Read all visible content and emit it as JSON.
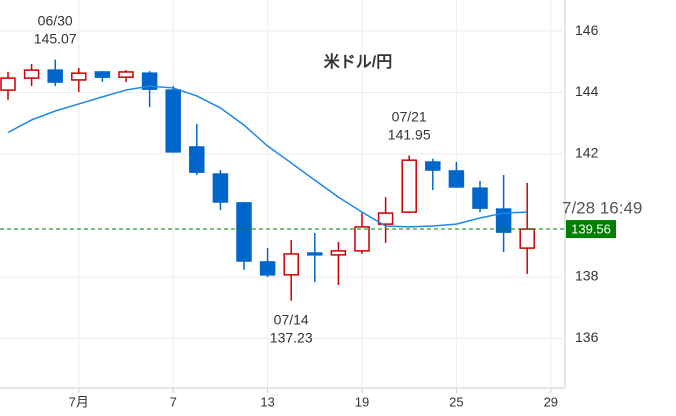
{
  "chart_data": {
    "type": "candlestick",
    "title": "米ドル/円",
    "categories": [
      null,
      null,
      null,
      "7月",
      null,
      null,
      null,
      "7",
      null,
      null,
      null,
      "13",
      null,
      null,
      null,
      "19",
      null,
      null,
      null,
      "25",
      null,
      null,
      null,
      "29"
    ],
    "open": [
      144.08,
      144.47,
      144.73,
      144.41,
      144.67,
      144.5,
      144.63,
      144.08,
      142.23,
      141.35,
      140.41,
      138.49,
      138.07,
      138.78,
      138.72,
      138.85,
      139.72,
      140.11,
      141.74,
      141.45,
      140.89,
      140.21,
      138.94,
      null
    ],
    "high": [
      144.67,
      144.93,
      145.07,
      144.8,
      144.7,
      144.73,
      144.7,
      144.21,
      142.98,
      141.48,
      140.44,
      138.94,
      139.2,
      139.43,
      139.14,
      140.08,
      140.6,
      141.95,
      141.85,
      141.74,
      141.12,
      141.32,
      141.06,
      null
    ],
    "low": [
      143.76,
      144.21,
      144.21,
      144.02,
      144.35,
      144.34,
      143.53,
      142.07,
      141.32,
      140.18,
      138.23,
      138.0,
      137.23,
      137.84,
      137.74,
      138.75,
      139.11,
      140.08,
      140.83,
      140.9,
      140.11,
      138.81,
      138.1,
      null
    ],
    "close": [
      144.47,
      144.73,
      144.34,
      144.63,
      144.5,
      144.67,
      144.11,
      142.07,
      141.41,
      140.44,
      138.52,
      138.07,
      138.75,
      138.72,
      138.85,
      139.63,
      140.08,
      141.8,
      141.48,
      140.93,
      140.24,
      139.46,
      139.56,
      null
    ],
    "up_color": "#cc0000",
    "down_color": "#0066cc",
    "moving_average": {
      "color": "#1e88e5",
      "values": [
        142.7,
        143.11,
        143.4,
        143.63,
        143.86,
        144.08,
        144.21,
        144.15,
        143.89,
        143.5,
        142.94,
        142.26,
        141.71,
        141.15,
        140.6,
        140.11,
        139.66,
        139.63,
        139.66,
        139.72,
        139.92,
        140.08,
        140.11,
        null
      ]
    },
    "annotations": [
      {
        "date": "06/30",
        "value": 145.07
      },
      {
        "date": "07/14",
        "value": 137.23
      },
      {
        "date": "07/21",
        "value": 141.95
      }
    ],
    "last_price": 139.56,
    "last_price_color": "#008000",
    "timestamp": "7/28 16:49",
    "ylim": [
      134.39,
      147.01
    ],
    "yticks": [
      136,
      138,
      142,
      144,
      146
    ],
    "grid": true
  }
}
